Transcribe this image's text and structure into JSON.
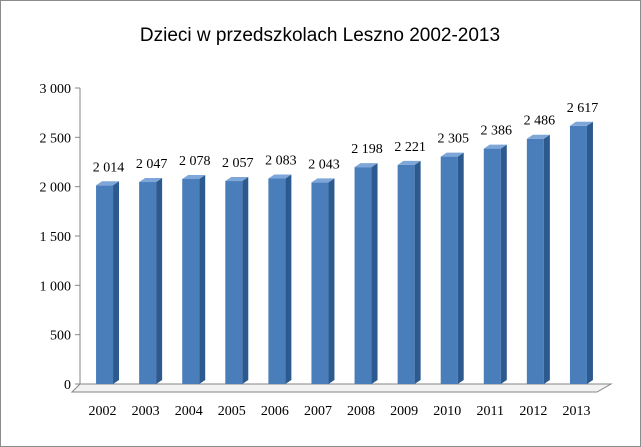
{
  "chart_data": {
    "type": "bar",
    "title": "Dzieci w przedszkolach  Leszno 2002-2013",
    "xlabel": "",
    "ylabel": "",
    "categories": [
      "2002",
      "2003",
      "2004",
      "2005",
      "2006",
      "2007",
      "2008",
      "2009",
      "2010",
      "2011",
      "2012",
      "2013"
    ],
    "values": [
      2014,
      2047,
      2078,
      2057,
      2083,
      2043,
      2198,
      2221,
      2305,
      2386,
      2486,
      2617
    ],
    "value_labels": [
      "2 014",
      "2 047",
      "2 078",
      "2 057",
      "2 083",
      "2 043",
      "2 198",
      "2 221",
      "2 305",
      "2 386",
      "2 486",
      "2 617"
    ],
    "ylim": [
      0,
      3000
    ],
    "yticks": [
      0,
      500,
      1000,
      1500,
      2000,
      2500,
      3000
    ],
    "ytick_labels": [
      "0",
      "500",
      "1 000",
      "1 500",
      "2 000",
      "2 500",
      "3 000"
    ],
    "grid": false,
    "legend": "none",
    "bar_style": "3d",
    "colors": {
      "bar_front": "#4a7ebb",
      "bar_side": "#2d5a8e",
      "bar_top": "#7ea6d8",
      "axis": "#868686"
    }
  }
}
